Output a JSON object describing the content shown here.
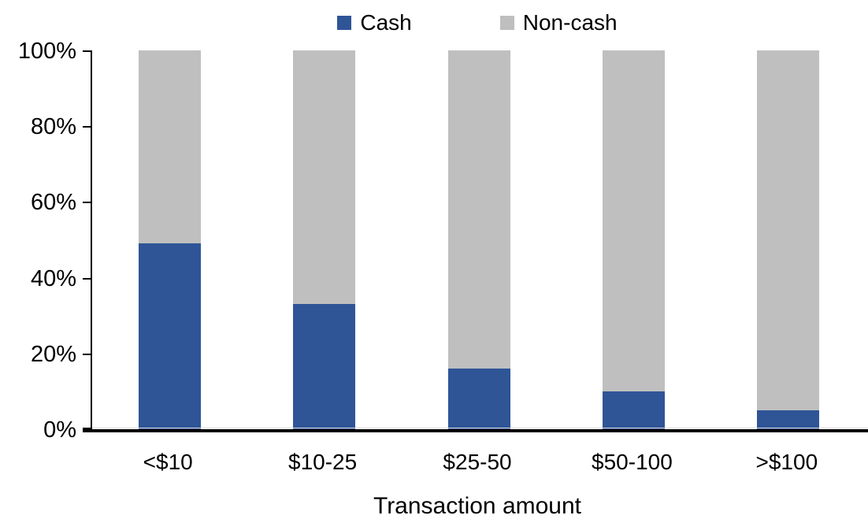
{
  "chart_data": {
    "type": "bar",
    "stacked": true,
    "percent_stacked": true,
    "title": "",
    "xlabel": "Transaction amount",
    "ylabel": "",
    "categories": [
      "<$10",
      "$10-25",
      "$25-50",
      "$50-100",
      ">$100"
    ],
    "series": [
      {
        "name": "Cash",
        "color": "#2F5597",
        "values": [
          49,
          33,
          16,
          10,
          5
        ]
      },
      {
        "name": "Non-cash",
        "color": "#BFBFBF",
        "values": [
          51,
          67,
          84,
          90,
          95
        ]
      }
    ],
    "ylim": [
      0,
      100
    ],
    "ytick_values": [
      0,
      20,
      40,
      60,
      80,
      100
    ],
    "ytick_labels": [
      "0%",
      "20%",
      "40%",
      "60%",
      "80%",
      "100%"
    ],
    "legend": {
      "position": "top",
      "items": [
        {
          "label": "Cash",
          "color": "#2F5597"
        },
        {
          "label": "Non-cash",
          "color": "#BFBFBF"
        }
      ]
    },
    "grid": false,
    "axis_color": "#000000",
    "background_color": "#FFFFFF"
  }
}
